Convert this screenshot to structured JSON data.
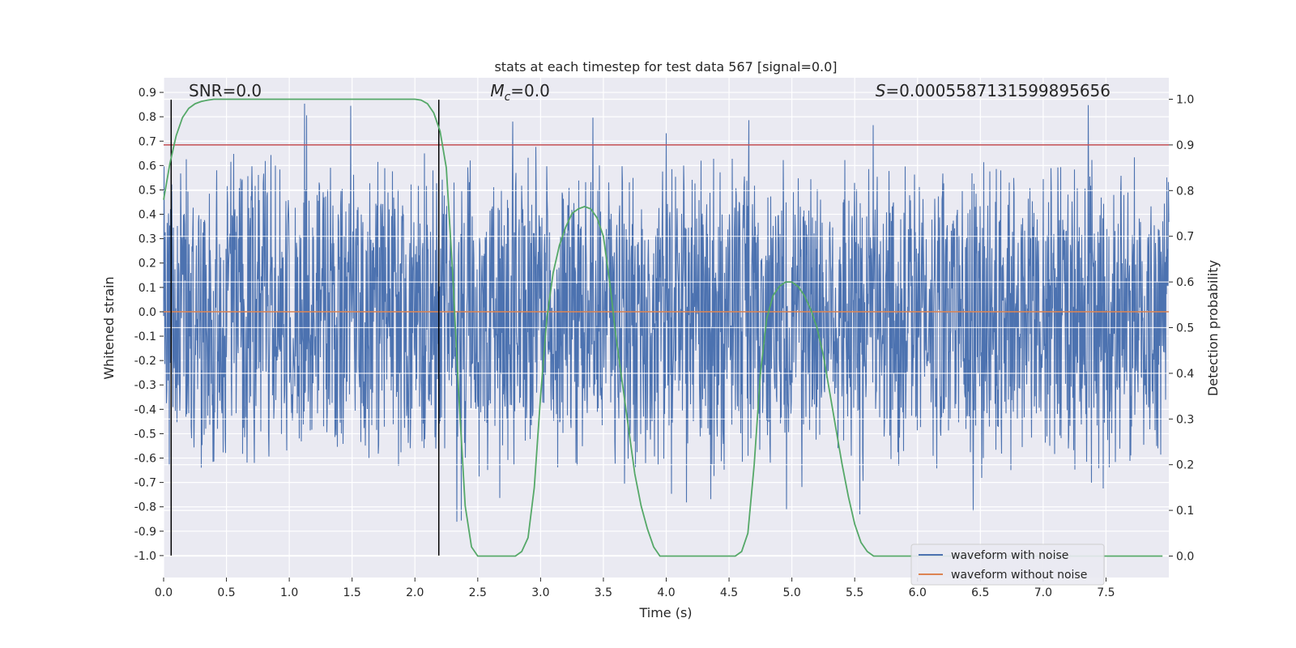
{
  "chart_data": {
    "type": "line",
    "title": "stats at each timestep for test data 567 [signal=0.0]",
    "xlabel": "Time (s)",
    "ylabel": "Whitened strain",
    "y2label": "Detection probability",
    "xlim": [
      0.0,
      8.0
    ],
    "ylim": [
      -1.09,
      0.96
    ],
    "y2lim": [
      -0.047,
      1.047
    ],
    "x_ticks": [
      "0.0",
      "0.5",
      "1.0",
      "1.5",
      "2.0",
      "2.5",
      "3.0",
      "3.5",
      "4.0",
      "4.5",
      "5.0",
      "5.5",
      "6.0",
      "6.5",
      "7.0",
      "7.5"
    ],
    "y_ticks": [
      "0.9",
      "0.8",
      "0.7",
      "0.6",
      "0.5",
      "0.4",
      "0.3",
      "0.2",
      "0.1",
      "0.0",
      "-0.1",
      "-0.2",
      "-0.3",
      "-0.4",
      "-0.5",
      "-0.6",
      "-0.7",
      "-0.8",
      "-0.9",
      "-1.0"
    ],
    "y2_ticks": [
      "1.0",
      "0.9",
      "0.8",
      "0.7",
      "0.6",
      "0.5",
      "0.4",
      "0.3",
      "0.2",
      "0.1",
      "0.0"
    ],
    "grid": true,
    "legend_position": "bottom-right",
    "series": [
      {
        "name": "waveform with noise",
        "color": "#4c72b0",
        "style": "dense noise, amplitude about 0.5 with spikes to about 0.87 and -1.0"
      },
      {
        "name": "waveform without noise",
        "color": "#dd8452",
        "y": 0.0
      },
      {
        "color": "#55a868",
        "axis": "right",
        "x": [
          0.0,
          0.05,
          0.1,
          0.15,
          0.2,
          0.25,
          0.3,
          0.35,
          0.4,
          0.5,
          0.7,
          1.0,
          1.5,
          2.0,
          2.05,
          2.1,
          2.15,
          2.2,
          2.25,
          2.3,
          2.35,
          2.4,
          2.45,
          2.5,
          2.55,
          2.6,
          2.7,
          2.8,
          2.85,
          2.9,
          2.95,
          3.0,
          3.05,
          3.1,
          3.15,
          3.2,
          3.25,
          3.3,
          3.35,
          3.4,
          3.45,
          3.5,
          3.55,
          3.6,
          3.65,
          3.7,
          3.75,
          3.8,
          3.85,
          3.9,
          3.95,
          4.0,
          4.05,
          4.1,
          4.2,
          4.4,
          4.5,
          4.55,
          4.6,
          4.65,
          4.7,
          4.75,
          4.8,
          4.85,
          4.9,
          4.95,
          5.0,
          5.05,
          5.1,
          5.15,
          5.2,
          5.25,
          5.3,
          5.35,
          5.4,
          5.45,
          5.5,
          5.55,
          5.6,
          5.65,
          5.7,
          5.75,
          5.8,
          6.0,
          7.0,
          7.95
        ],
        "y": [
          0.78,
          0.86,
          0.92,
          0.96,
          0.98,
          0.99,
          0.995,
          0.998,
          1.0,
          1.0,
          1.0,
          1.0,
          1.0,
          1.0,
          0.998,
          0.99,
          0.97,
          0.93,
          0.85,
          0.62,
          0.35,
          0.11,
          0.02,
          0.0,
          0.0,
          0.0,
          0.0,
          0.0,
          0.01,
          0.04,
          0.15,
          0.35,
          0.52,
          0.62,
          0.68,
          0.72,
          0.75,
          0.76,
          0.765,
          0.76,
          0.74,
          0.7,
          0.6,
          0.48,
          0.38,
          0.28,
          0.18,
          0.11,
          0.06,
          0.02,
          0.0,
          0.0,
          0.0,
          0.0,
          0.0,
          0.0,
          0.0,
          0.0,
          0.01,
          0.05,
          0.2,
          0.4,
          0.52,
          0.57,
          0.59,
          0.6,
          0.6,
          0.59,
          0.57,
          0.54,
          0.5,
          0.44,
          0.36,
          0.28,
          0.2,
          0.13,
          0.07,
          0.03,
          0.01,
          0.0,
          0.0,
          0.0,
          0.0,
          0.0,
          0.0,
          0.0
        ]
      }
    ],
    "hlines": [
      {
        "axis": "right",
        "y": 0.9,
        "color": "#c44e52"
      }
    ],
    "vlines": [
      {
        "x": 0.06,
        "color": "#000000"
      },
      {
        "x": 2.19,
        "color": "#000000"
      }
    ],
    "annotations": [
      {
        "text": "SNR=0.0",
        "x": 0.2,
        "y": 0.9
      },
      {
        "text_prefix": "M",
        "text_sub": "c",
        "text_suffix": "=0.0",
        "x": 2.6,
        "y": 0.9
      },
      {
        "text_prefix": "S",
        "text_suffix": "=0.000558713159989565 6",
        "x": 5.6,
        "y": 0.9
      }
    ],
    "legend": [
      "waveform with noise",
      "waveform without noise"
    ]
  }
}
